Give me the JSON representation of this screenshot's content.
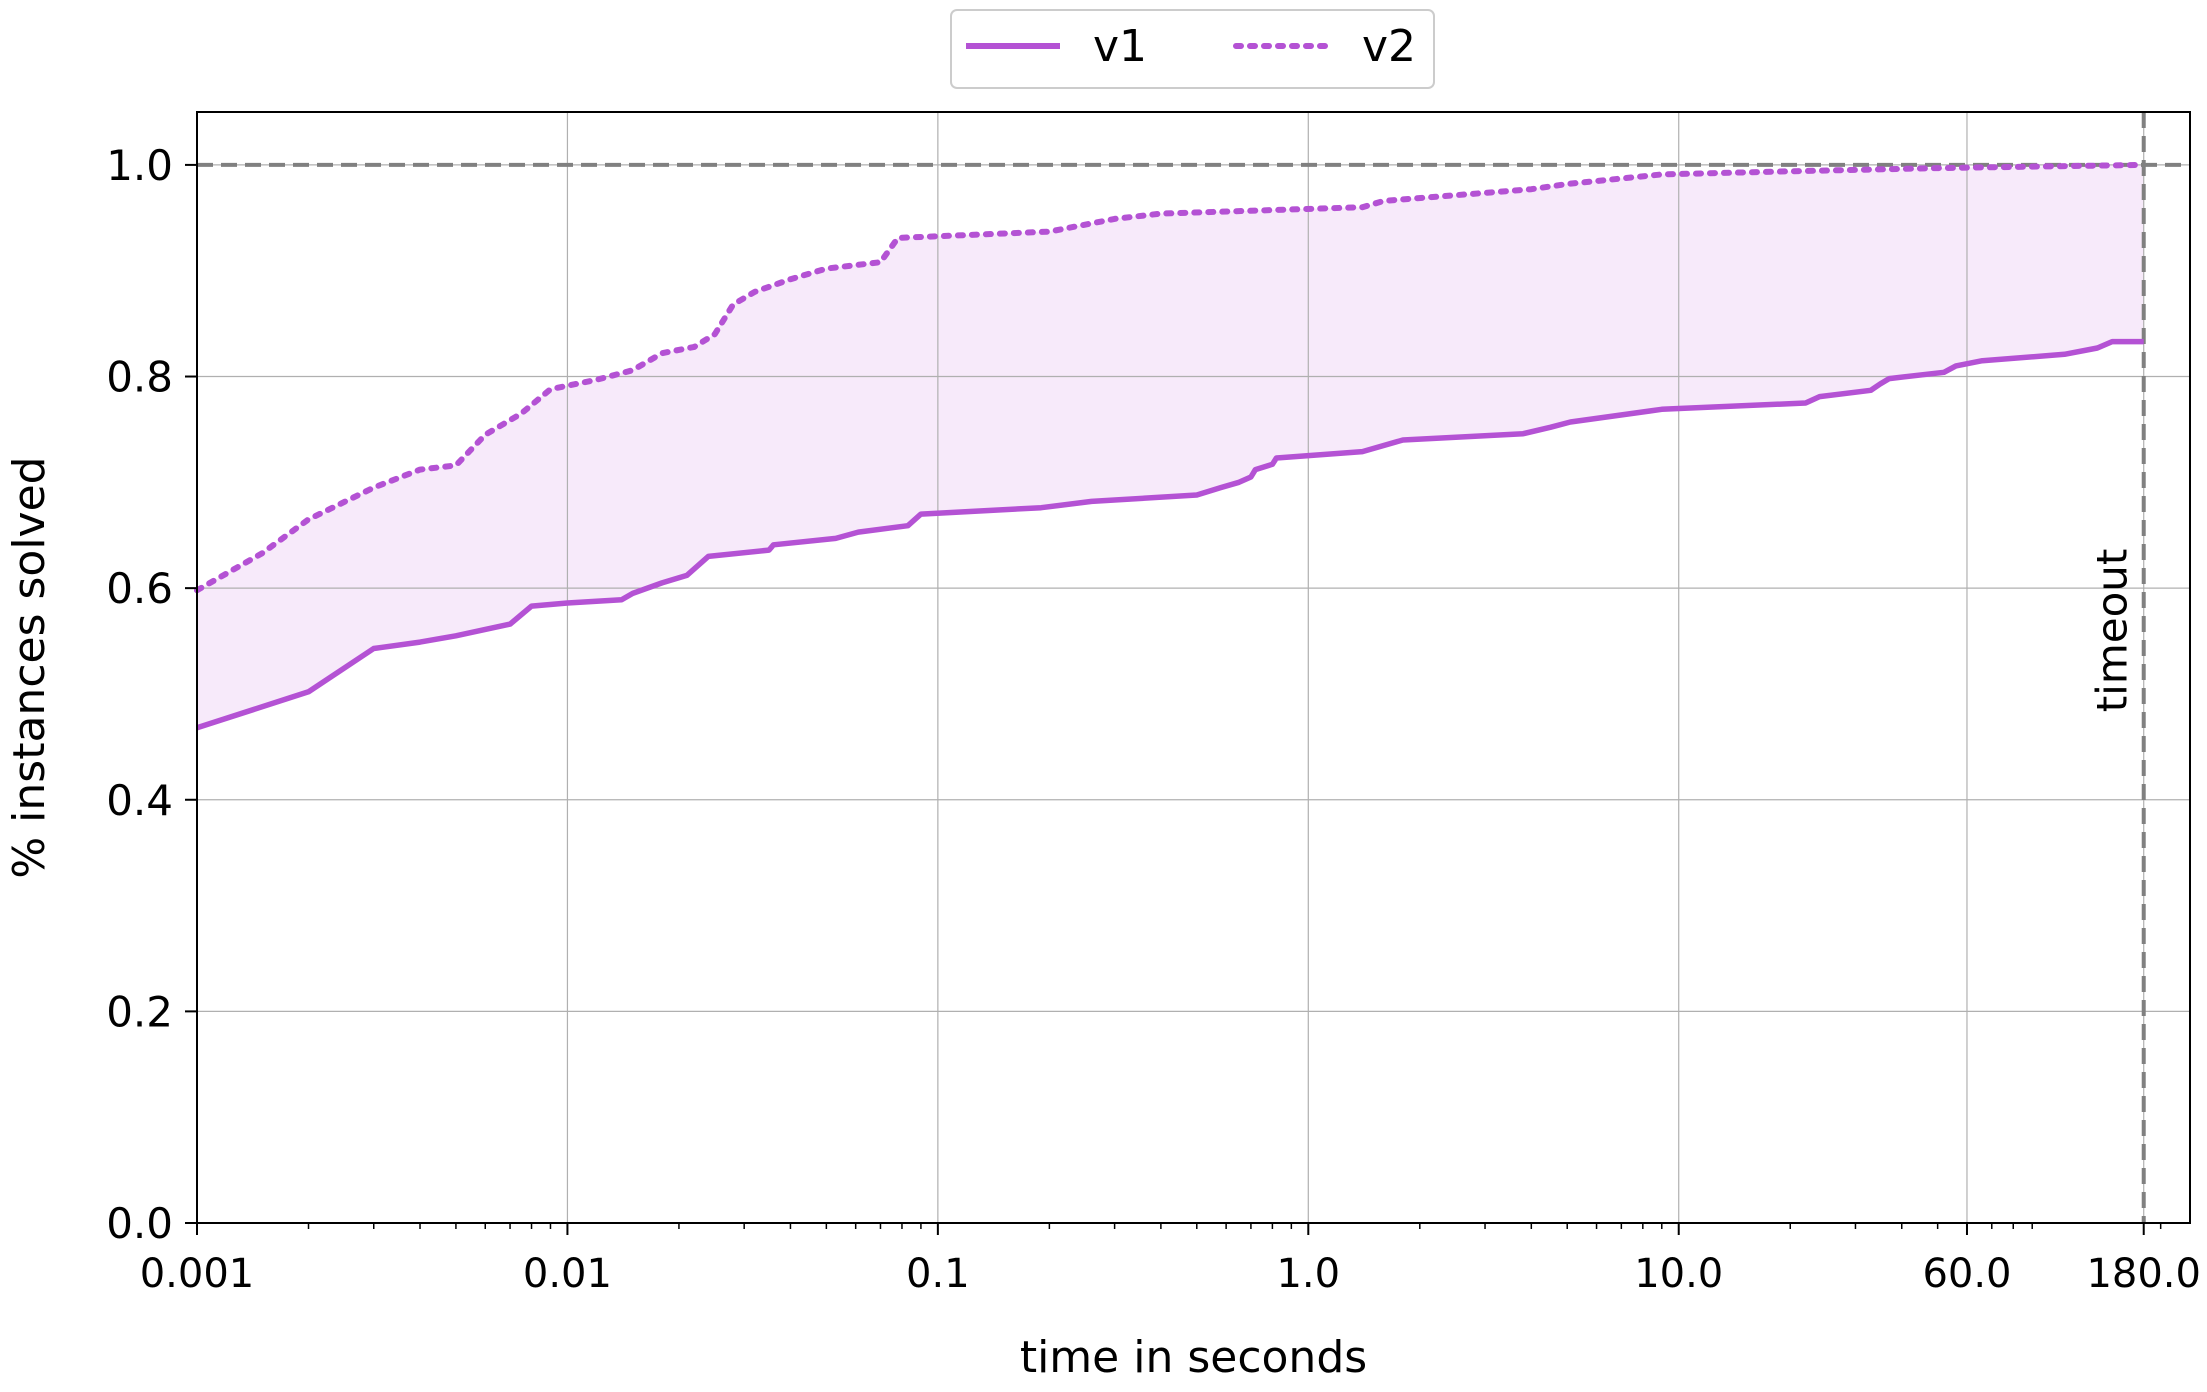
{
  "chart_data": {
    "type": "line",
    "title": "",
    "xlabel": "time in seconds",
    "ylabel": "% instances solved",
    "xscale": "log",
    "xlim": [
      0.001,
      240
    ],
    "ylim": [
      0.0,
      1.05
    ],
    "x_ticks": [
      0.001,
      0.01,
      0.1,
      1.0,
      10.0,
      60.0,
      180.0
    ],
    "x_tick_labels": [
      "0.001",
      "0.01",
      "0.1",
      "1.0",
      "10.0",
      "60.0",
      "180.0"
    ],
    "y_ticks": [
      0.0,
      0.2,
      0.4,
      0.6,
      0.8,
      1.0
    ],
    "y_tick_labels": [
      "0.0",
      "0.2",
      "0.4",
      "0.6",
      "0.8",
      "1.0"
    ],
    "grid": true,
    "legend_position": "top-center",
    "reference_lines": {
      "horizontal": {
        "y": 1.0,
        "style": "dashed",
        "color": "#808080"
      },
      "vertical": {
        "x": 180.0,
        "style": "dashed",
        "color": "#808080",
        "label": "timeout"
      }
    },
    "fill_between": {
      "series": [
        "v1",
        "v2"
      ],
      "color": "#bf5fd8",
      "opacity": 0.13
    },
    "series": [
      {
        "name": "v1",
        "style": "solid",
        "color": "#b452d4",
        "points": [
          [
            0.001,
            0.468
          ],
          [
            0.002,
            0.502
          ],
          [
            0.003,
            0.543
          ],
          [
            0.004,
            0.549
          ],
          [
            0.005,
            0.555
          ],
          [
            0.006,
            0.561
          ],
          [
            0.007,
            0.566
          ],
          [
            0.008,
            0.583
          ],
          [
            0.01,
            0.586
          ],
          [
            0.014,
            0.589
          ],
          [
            0.015,
            0.595
          ],
          [
            0.018,
            0.605
          ],
          [
            0.021,
            0.612
          ],
          [
            0.024,
            0.63
          ],
          [
            0.035,
            0.636
          ],
          [
            0.036,
            0.641
          ],
          [
            0.053,
            0.647
          ],
          [
            0.061,
            0.653
          ],
          [
            0.083,
            0.659
          ],
          [
            0.09,
            0.67
          ],
          [
            0.19,
            0.676
          ],
          [
            0.26,
            0.682
          ],
          [
            0.5,
            0.688
          ],
          [
            0.58,
            0.695
          ],
          [
            0.65,
            0.7
          ],
          [
            0.7,
            0.705
          ],
          [
            0.72,
            0.712
          ],
          [
            0.8,
            0.717
          ],
          [
            0.82,
            0.723
          ],
          [
            1.4,
            0.729
          ],
          [
            1.8,
            0.74
          ],
          [
            3.8,
            0.746
          ],
          [
            4.5,
            0.752
          ],
          [
            5.1,
            0.757
          ],
          [
            9.0,
            0.769
          ],
          [
            22.0,
            0.775
          ],
          [
            24.0,
            0.781
          ],
          [
            33.0,
            0.787
          ],
          [
            35.0,
            0.793
          ],
          [
            37.0,
            0.798
          ],
          [
            52.0,
            0.804
          ],
          [
            56.0,
            0.81
          ],
          [
            66.0,
            0.815
          ],
          [
            110.0,
            0.821
          ],
          [
            135.0,
            0.827
          ],
          [
            148.0,
            0.833
          ],
          [
            180.0,
            0.833
          ]
        ]
      },
      {
        "name": "v2",
        "style": "dotted",
        "color": "#b452d4",
        "points": [
          [
            0.001,
            0.598
          ],
          [
            0.0015,
            0.633
          ],
          [
            0.002,
            0.665
          ],
          [
            0.003,
            0.695
          ],
          [
            0.004,
            0.712
          ],
          [
            0.005,
            0.716
          ],
          [
            0.006,
            0.745
          ],
          [
            0.0075,
            0.765
          ],
          [
            0.009,
            0.788
          ],
          [
            0.012,
            0.797
          ],
          [
            0.015,
            0.806
          ],
          [
            0.018,
            0.822
          ],
          [
            0.022,
            0.828
          ],
          [
            0.025,
            0.84
          ],
          [
            0.028,
            0.868
          ],
          [
            0.032,
            0.88
          ],
          [
            0.04,
            0.892
          ],
          [
            0.05,
            0.902
          ],
          [
            0.07,
            0.908
          ],
          [
            0.078,
            0.931
          ],
          [
            0.2,
            0.937
          ],
          [
            0.3,
            0.949
          ],
          [
            0.4,
            0.954
          ],
          [
            1.4,
            0.96
          ],
          [
            1.6,
            0.966
          ],
          [
            4.0,
            0.977
          ],
          [
            5.0,
            0.982
          ],
          [
            9.0,
            0.991
          ],
          [
            20.0,
            0.994
          ],
          [
            50.0,
            0.997
          ],
          [
            180.0,
            1.0
          ]
        ]
      }
    ]
  },
  "colors": {
    "series_color": "#b452d4",
    "fill_color": "#bf5fd8",
    "reference_line": "#808080",
    "grid": "#b0b0b0",
    "axes": "#000000"
  }
}
